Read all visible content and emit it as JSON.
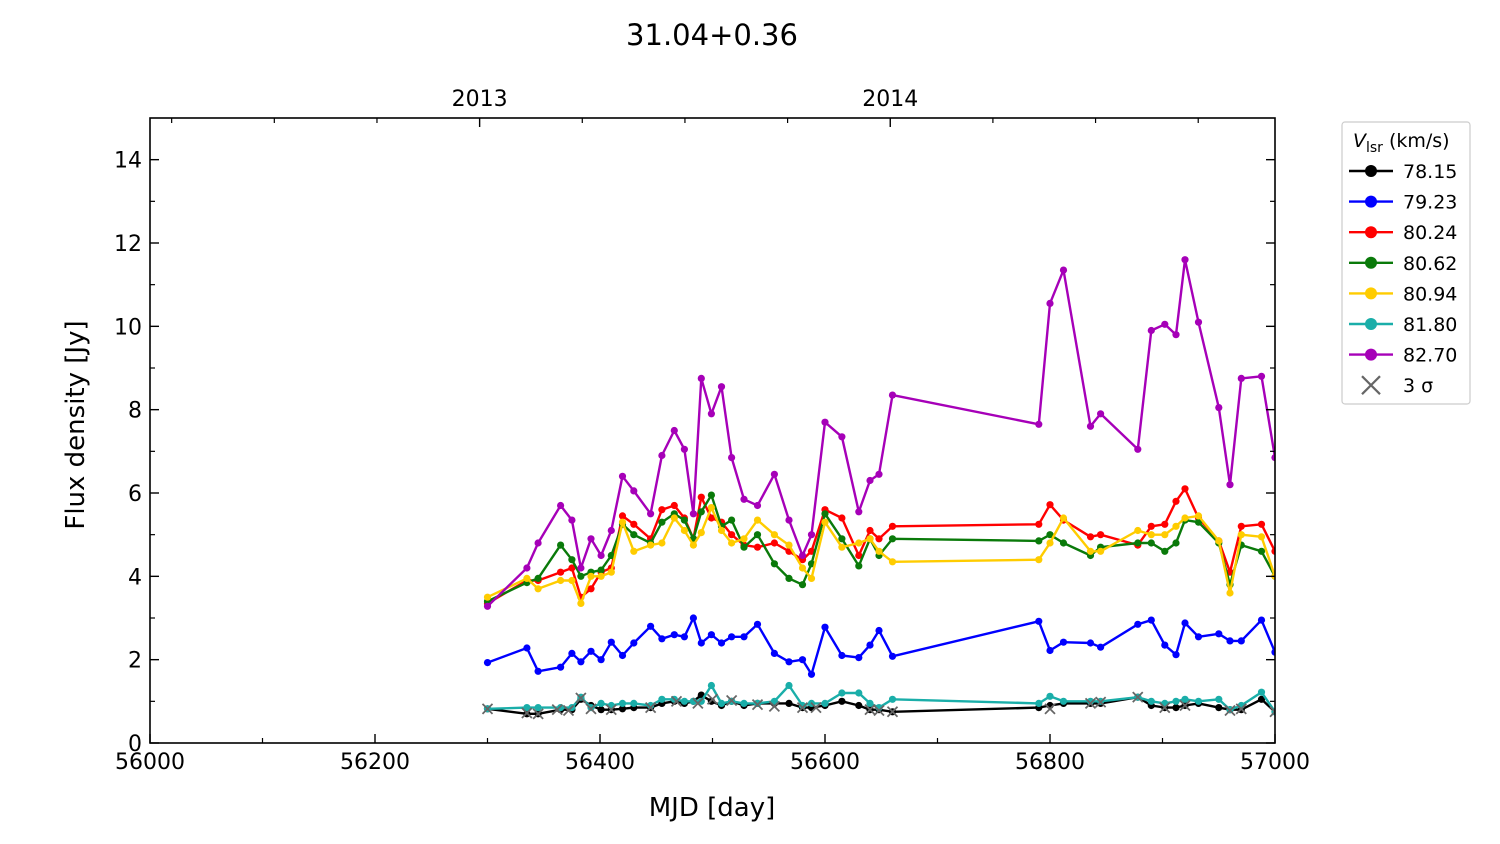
{
  "chart_data": {
    "type": "line",
    "title": "31.04+0.36",
    "xlabel": "MJD [day]",
    "ylabel": "Flux density [Jy]",
    "xlim": [
      56000,
      57000
    ],
    "ylim": [
      0,
      15
    ],
    "xticks": [
      "56000",
      "56200",
      "56400",
      "56600",
      "56800",
      "57000"
    ],
    "yticks": [
      "0",
      "2",
      "4",
      "6",
      "8",
      "10",
      "12",
      "14"
    ],
    "top_axis": {
      "ticks": [
        {
          "mjd": 56293,
          "label": "2013"
        },
        {
          "mjd": 56658,
          "label": "2014"
        }
      ]
    },
    "legend": {
      "title_main": "V",
      "title_sub": "lsr",
      "title_unit": "(km/s)",
      "placement": "outside-right",
      "sigma_label": "3 σ"
    },
    "x": [
      56300,
      56335,
      56345,
      56365,
      56375,
      56383,
      56392,
      56401,
      56410,
      56420,
      56430,
      56445,
      56455,
      56466,
      56475,
      56483,
      56490,
      56499,
      56508,
      56517,
      56528,
      56540,
      56555,
      56568,
      56580,
      56588,
      56600,
      56615,
      56630,
      56640,
      56648,
      56660,
      56790,
      56800,
      56812,
      56836,
      56845,
      56878,
      56890,
      56902,
      56912,
      56920,
      56932,
      56950,
      56960,
      56970,
      56988,
      57000
    ],
    "series": [
      {
        "name": "78.15",
        "color": "#000000",
        "values": [
          0.82,
          0.7,
          0.7,
          0.8,
          0.8,
          1.05,
          0.9,
          0.8,
          0.8,
          0.82,
          0.85,
          0.85,
          0.95,
          1.0,
          0.95,
          1.0,
          1.15,
          1.0,
          0.9,
          1.0,
          0.9,
          0.95,
          0.95,
          0.95,
          0.85,
          0.85,
          0.9,
          1.0,
          0.9,
          0.8,
          0.8,
          0.75,
          0.85,
          0.9,
          0.95,
          0.95,
          0.95,
          1.1,
          0.9,
          0.85,
          0.85,
          0.9,
          0.95,
          0.85,
          0.8,
          0.8,
          1.05,
          0.75
        ]
      },
      {
        "name": "79.23",
        "color": "#0000ff",
        "values": [
          1.93,
          2.28,
          1.72,
          1.82,
          2.15,
          1.95,
          2.2,
          2.0,
          2.42,
          2.1,
          2.4,
          2.8,
          2.5,
          2.6,
          2.55,
          3.0,
          2.4,
          2.6,
          2.4,
          2.55,
          2.55,
          2.85,
          2.15,
          1.95,
          2.0,
          1.65,
          2.78,
          2.1,
          2.05,
          2.35,
          2.7,
          2.08,
          2.92,
          2.22,
          2.42,
          2.4,
          2.3,
          2.85,
          2.95,
          2.35,
          2.12,
          2.88,
          2.55,
          2.62,
          2.45,
          2.45,
          2.95,
          2.18
        ]
      },
      {
        "name": "80.24",
        "color": "#ff0000",
        "values": [
          3.35,
          3.9,
          3.9,
          4.1,
          4.2,
          3.5,
          3.7,
          4.1,
          4.2,
          5.45,
          5.25,
          4.9,
          5.6,
          5.7,
          5.4,
          4.9,
          5.9,
          5.4,
          5.3,
          5.0,
          4.75,
          4.7,
          4.8,
          4.6,
          4.4,
          4.6,
          5.6,
          5.4,
          4.5,
          5.1,
          4.9,
          5.2,
          5.25,
          5.72,
          5.35,
          4.95,
          5.0,
          4.75,
          5.2,
          5.25,
          5.8,
          6.1,
          5.4,
          4.85,
          4.1,
          5.2,
          5.25,
          4.6
        ]
      },
      {
        "name": "80.62",
        "color": "#0a7a0a",
        "values": [
          3.4,
          3.85,
          3.95,
          4.75,
          4.4,
          4.0,
          4.1,
          4.15,
          4.5,
          5.25,
          5.0,
          4.8,
          5.3,
          5.5,
          5.35,
          4.9,
          5.55,
          5.95,
          5.2,
          5.35,
          4.7,
          5.0,
          4.3,
          3.95,
          3.8,
          4.3,
          5.5,
          4.9,
          4.25,
          4.9,
          4.5,
          4.9,
          4.85,
          5.0,
          4.8,
          4.5,
          4.7,
          4.8,
          4.8,
          4.6,
          4.8,
          5.35,
          5.3,
          4.8,
          3.8,
          4.75,
          4.6,
          4.0
        ]
      },
      {
        "name": "80.94",
        "color": "#ffcc00",
        "values": [
          3.5,
          3.95,
          3.7,
          3.9,
          3.9,
          3.35,
          4.0,
          4.0,
          4.1,
          5.3,
          4.6,
          4.75,
          4.8,
          5.4,
          5.1,
          4.75,
          5.05,
          5.65,
          5.1,
          4.8,
          4.9,
          5.35,
          5.0,
          4.75,
          4.2,
          3.95,
          5.3,
          4.7,
          4.8,
          4.9,
          4.6,
          4.35,
          4.4,
          4.8,
          5.4,
          4.6,
          4.6,
          5.1,
          5.0,
          5.0,
          5.2,
          5.4,
          5.45,
          4.85,
          3.6,
          5.0,
          4.95,
          4.0
        ]
      },
      {
        "name": "81.80",
        "color": "#1aaea9",
        "values": [
          0.82,
          0.85,
          0.85,
          0.85,
          0.85,
          1.1,
          0.85,
          0.95,
          0.9,
          0.95,
          0.95,
          0.9,
          1.05,
          1.05,
          1.0,
          1.0,
          1.0,
          1.38,
          0.95,
          1.0,
          0.95,
          0.95,
          1.0,
          1.38,
          0.9,
          0.95,
          0.95,
          1.2,
          1.2,
          0.95,
          0.85,
          1.05,
          0.95,
          1.12,
          1.0,
          1.0,
          1.0,
          1.1,
          1.0,
          0.95,
          1.0,
          1.05,
          1.0,
          1.05,
          0.8,
          0.9,
          1.22,
          0.75
        ]
      },
      {
        "name": "82.70",
        "color": "#a600b8",
        "values": [
          3.28,
          4.2,
          4.8,
          5.7,
          5.35,
          4.2,
          4.9,
          4.5,
          5.1,
          6.4,
          6.05,
          5.5,
          6.9,
          7.5,
          7.05,
          5.5,
          8.75,
          7.9,
          8.55,
          6.85,
          5.85,
          5.7,
          6.45,
          5.35,
          4.5,
          5.0,
          7.7,
          7.35,
          5.55,
          6.3,
          6.45,
          8.35,
          7.65,
          10.55,
          11.35,
          7.6,
          7.9,
          7.05,
          9.9,
          10.05,
          9.8,
          11.6,
          10.1,
          8.05,
          6.2,
          8.75,
          8.8,
          6.85
        ]
      }
    ],
    "sigma_points": {
      "name": "3 σ",
      "color": "#666666",
      "points": [
        [
          56300,
          0.82
        ],
        [
          56335,
          0.72
        ],
        [
          56345,
          0.7
        ],
        [
          56362,
          0.8
        ],
        [
          56372,
          0.78
        ],
        [
          56383,
          1.08
        ],
        [
          56392,
          0.82
        ],
        [
          56410,
          0.8
        ],
        [
          56445,
          0.85
        ],
        [
          56468,
          1.0
        ],
        [
          56487,
          0.95
        ],
        [
          56500,
          1.05
        ],
        [
          56517,
          1.02
        ],
        [
          56540,
          0.92
        ],
        [
          56555,
          0.88
        ],
        [
          56580,
          0.85
        ],
        [
          56592,
          0.85
        ],
        [
          56640,
          0.8
        ],
        [
          56648,
          0.78
        ],
        [
          56660,
          0.75
        ],
        [
          56800,
          0.82
        ],
        [
          56836,
          0.95
        ],
        [
          56845,
          0.98
        ],
        [
          56878,
          1.1
        ],
        [
          56902,
          0.85
        ],
        [
          56920,
          0.9
        ],
        [
          56960,
          0.78
        ],
        [
          56970,
          0.82
        ],
        [
          57000,
          0.75
        ]
      ]
    }
  }
}
